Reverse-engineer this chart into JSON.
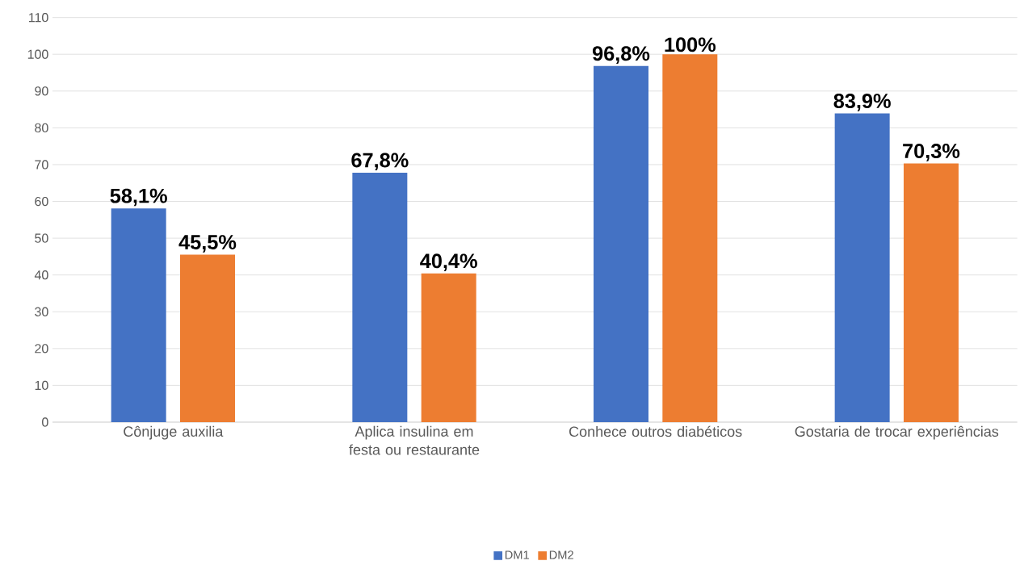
{
  "chart_data": {
    "type": "bar",
    "categories": [
      "Cônjuge auxilia",
      "Aplica insulina em festa ou restaurante",
      "Conhece outros diabéticos",
      "Gostaria de trocar experiências"
    ],
    "series": [
      {
        "name": "DM1",
        "color": "#4472c4",
        "values": [
          58.1,
          67.8,
          96.8,
          83.9
        ],
        "value_labels": [
          "58,1%",
          "67,8%",
          "96,8%",
          "83,9%"
        ]
      },
      {
        "name": "DM2",
        "color": "#ed7d31",
        "values": [
          45.5,
          40.4,
          100,
          70.3
        ],
        "value_labels": [
          "45,5%",
          "40,4%",
          "100%",
          "70,3%"
        ]
      }
    ],
    "ylim": [
      0,
      110
    ],
    "yticks": [
      0,
      10,
      20,
      30,
      40,
      50,
      60,
      70,
      80,
      90,
      100,
      110
    ],
    "grid": "y",
    "legend": "bottom"
  }
}
